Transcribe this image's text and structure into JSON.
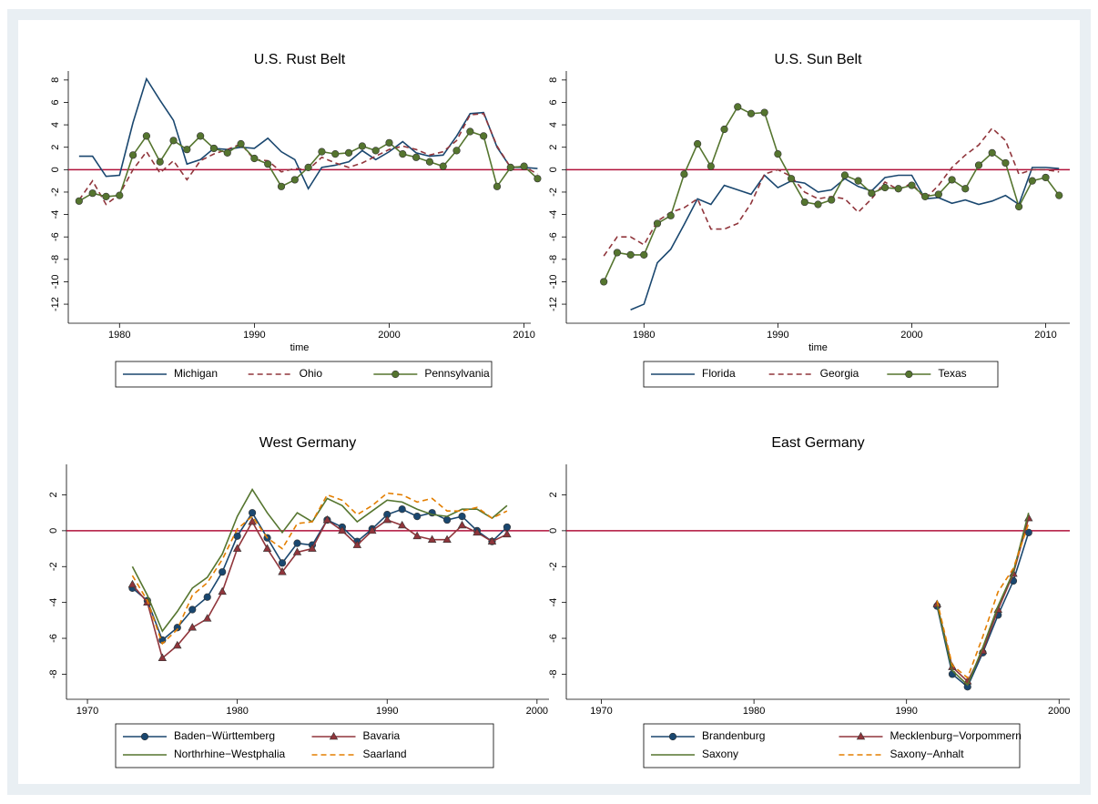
{
  "chart_data": [
    {
      "type": "line",
      "title": "U.S. Rust Belt",
      "x_label": "time",
      "x": [
        1977,
        1978,
        1979,
        1980,
        1981,
        1982,
        1983,
        1984,
        1985,
        1986,
        1987,
        1988,
        1989,
        1990,
        1991,
        1992,
        1993,
        1994,
        1995,
        1996,
        1997,
        1998,
        1999,
        2000,
        2001,
        2002,
        2003,
        2004,
        2005,
        2006,
        2007,
        2008,
        2009,
        2010,
        2011
      ],
      "series": [
        {
          "name": "Michigan",
          "color": "#1a476f",
          "values": [
            1.2,
            1.2,
            -0.6,
            -0.5,
            4.2,
            8.1,
            6.2,
            4.4,
            0.5,
            0.9,
            1.9,
            1.8,
            2.0,
            1.9,
            2.8,
            1.6,
            0.9,
            -1.7,
            0.2,
            0.4,
            0.7,
            1.7,
            0.9,
            1.6,
            2.5,
            1.5,
            1.2,
            1.3,
            3.0,
            5.0,
            5.1,
            2.0,
            0.2,
            0.2,
            0.1
          ]
        },
        {
          "name": "Ohio",
          "color": "#90353b",
          "dash": true,
          "values": [
            -2.7,
            -1.0,
            -3.1,
            -2.2,
            0.0,
            1.6,
            -0.3,
            0.8,
            -0.9,
            0.8,
            1.4,
            1.8,
            2.3,
            0.9,
            0.8,
            -0.2,
            0.1,
            0.0,
            1.1,
            0.6,
            0.2,
            0.6,
            1.2,
            1.8,
            2.1,
            1.8,
            1.3,
            1.6,
            2.6,
            4.9,
            5.0,
            2.1,
            0.2,
            0.3,
            -0.4
          ]
        },
        {
          "name": "Pennsylvania",
          "color": "#55752f",
          "marker": "circle",
          "values": [
            -2.8,
            -2.1,
            -2.4,
            -2.3,
            1.3,
            3.0,
            0.7,
            2.6,
            1.8,
            3.0,
            1.9,
            1.5,
            2.3,
            1.0,
            0.5,
            -1.5,
            -0.9,
            0.2,
            1.6,
            1.4,
            1.5,
            2.1,
            1.7,
            2.4,
            1.4,
            1.1,
            0.7,
            0.3,
            1.7,
            3.4,
            3.0,
            -1.5,
            0.2,
            0.3,
            -0.8
          ]
        }
      ],
      "xlim": [
        1976.2,
        2010.5
      ],
      "ylim": [
        -13.7,
        8.8
      ],
      "xticks": [
        1980,
        1990,
        2000,
        2010
      ],
      "yticks": [
        -12,
        -10,
        -8,
        -6,
        -4,
        -2,
        0,
        2,
        4,
        6,
        8
      ],
      "reference_line": 0,
      "legend_columns": 3
    },
    {
      "type": "line",
      "title": "U.S. Sun Belt",
      "x_label": "time",
      "x": [
        1977,
        1978,
        1979,
        1980,
        1981,
        1982,
        1983,
        1984,
        1985,
        1986,
        1987,
        1988,
        1989,
        1990,
        1991,
        1992,
        1993,
        1994,
        1995,
        1996,
        1997,
        1998,
        1999,
        2000,
        2001,
        2002,
        2003,
        2004,
        2005,
        2006,
        2007,
        2008,
        2009,
        2010,
        2011
      ],
      "series": [
        {
          "name": "Florida",
          "color": "#1a476f",
          "values": [
            null,
            null,
            -12.5,
            -12.0,
            -8.3,
            -7.1,
            -4.9,
            -2.6,
            -3.1,
            -1.4,
            -1.8,
            -2.2,
            -0.5,
            -1.6,
            -1.0,
            -1.2,
            -2.0,
            -1.8,
            -0.8,
            -1.5,
            -1.9,
            -0.7,
            -0.5,
            -0.5,
            -2.6,
            -2.5,
            -3.0,
            -2.7,
            -3.1,
            -2.8,
            -2.3,
            -3.1,
            0.2,
            0.2,
            0.1
          ]
        },
        {
          "name": "Georgia",
          "color": "#90353b",
          "dash": true,
          "values": [
            -7.7,
            -6.0,
            -6.0,
            -6.7,
            -4.6,
            -3.8,
            -3.4,
            -2.6,
            -5.3,
            -5.3,
            -4.8,
            -3.0,
            -0.4,
            0.0,
            -0.6,
            -2.0,
            -2.6,
            -2.4,
            -2.6,
            -3.8,
            -2.6,
            -1.1,
            -1.8,
            -1.2,
            -2.6,
            -1.4,
            0.2,
            1.3,
            2.2,
            3.7,
            2.6,
            -0.4,
            0.0,
            0.0,
            -0.2
          ]
        },
        {
          "name": "Texas",
          "color": "#55752f",
          "marker": "circle",
          "values": [
            -10.0,
            -7.4,
            -7.6,
            -7.6,
            -4.8,
            -4.1,
            -0.4,
            2.3,
            0.3,
            3.6,
            5.6,
            5.0,
            5.1,
            1.4,
            -0.8,
            -2.9,
            -3.1,
            -2.7,
            -0.5,
            -1.0,
            -2.1,
            -1.6,
            -1.7,
            -1.4,
            -2.4,
            -2.2,
            -0.9,
            -1.7,
            0.4,
            1.5,
            0.6,
            -3.3,
            -1.0,
            -0.7,
            -2.3
          ]
        }
      ],
      "xlim": [
        1974.2,
        2011.8
      ],
      "ylim": [
        -13.7,
        8.8
      ],
      "xticks": [
        1980,
        1990,
        2000,
        2010
      ],
      "yticks": [
        -12,
        -10,
        -8,
        -6,
        -4,
        -2,
        0,
        2,
        4,
        6,
        8
      ],
      "reference_line": 0,
      "legend_columns": 3
    },
    {
      "type": "line",
      "title": "West Germany",
      "x": [
        1973,
        1974,
        1975,
        1976,
        1977,
        1978,
        1979,
        1980,
        1981,
        1982,
        1983,
        1984,
        1985,
        1986,
        1987,
        1988,
        1989,
        1990,
        1991,
        1992,
        1993,
        1994,
        1995,
        1996,
        1997,
        1998
      ],
      "series": [
        {
          "name": "Baden−Württemberg",
          "color": "#1a476f",
          "marker": "circle",
          "values": [
            -3.2,
            -3.9,
            -6.1,
            -5.4,
            -4.4,
            -3.7,
            -2.3,
            -0.3,
            1.0,
            -0.4,
            -1.8,
            -0.7,
            -0.8,
            0.6,
            0.2,
            -0.6,
            0.1,
            0.9,
            1.2,
            0.8,
            1.0,
            0.6,
            0.8,
            0.0,
            -0.6,
            0.2
          ]
        },
        {
          "name": "Bavaria",
          "color": "#90353b",
          "marker": "triangle",
          "values": [
            -3.0,
            -4.0,
            -7.1,
            -6.4,
            -5.4,
            -4.9,
            -3.4,
            -1.0,
            0.5,
            -1.0,
            -2.3,
            -1.2,
            -1.0,
            0.6,
            0.0,
            -0.8,
            0.0,
            0.6,
            0.3,
            -0.3,
            -0.5,
            -0.5,
            0.3,
            -0.1,
            -0.6,
            -0.2
          ]
        },
        {
          "name": "Northrhine−Westphalia",
          "color": "#55752f",
          "values": [
            -2.0,
            -3.6,
            -5.6,
            -4.5,
            -3.2,
            -2.6,
            -1.3,
            0.8,
            2.3,
            1.0,
            -0.1,
            1.0,
            0.5,
            1.8,
            1.4,
            0.5,
            1.1,
            1.7,
            1.6,
            1.2,
            0.9,
            0.8,
            1.2,
            1.2,
            0.7,
            1.4
          ]
        },
        {
          "name": "Saarland",
          "color": "#e37e00",
          "dash": true,
          "values": [
            -2.5,
            -3.9,
            -6.3,
            -5.5,
            -3.6,
            -2.9,
            -1.6,
            0.1,
            0.8,
            -0.4,
            -1.0,
            0.4,
            0.5,
            2.0,
            1.7,
            0.9,
            1.4,
            2.1,
            2.0,
            1.6,
            1.8,
            1.1,
            1.1,
            1.3,
            0.7,
            1.1
          ]
        }
      ],
      "xlim": [
        1968.6,
        2000.8
      ],
      "ylim": [
        -9.4,
        3.7
      ],
      "xticks": [
        1970,
        1980,
        1990,
        2000
      ],
      "yticks": [
        -8,
        -6,
        -4,
        -2,
        0,
        2
      ],
      "reference_line": 0,
      "legend_columns": 2
    },
    {
      "type": "line",
      "title": "East Germany",
      "x": [
        1992,
        1993,
        1994,
        1995,
        1996,
        1997,
        1998
      ],
      "series": [
        {
          "name": "Brandenburg",
          "color": "#1a476f",
          "marker": "circle",
          "values": [
            -4.2,
            -8.0,
            -8.7,
            -6.8,
            -4.7,
            -2.8,
            -0.1
          ]
        },
        {
          "name": "Mecklenburg−Vorpommern",
          "color": "#90353b",
          "marker": "triangle",
          "values": [
            -4.1,
            -7.6,
            -8.4,
            -6.7,
            -4.4,
            -2.4,
            0.7
          ]
        },
        {
          "name": "Saxony",
          "color": "#55752f",
          "values": [
            -4.1,
            -7.8,
            -8.6,
            -6.5,
            -4.2,
            -2.3,
            1.0
          ]
        },
        {
          "name": "Saxony−Anhalt",
          "color": "#e37e00",
          "dash": true,
          "values": [
            -3.9,
            -7.5,
            -8.2,
            -5.9,
            -3.4,
            -2.1,
            0.4
          ]
        }
      ],
      "xlim": [
        1967.7,
        2000.7
      ],
      "ylim": [
        -9.4,
        3.7
      ],
      "xticks": [
        1970,
        1980,
        1990,
        2000
      ],
      "yticks": [
        -8,
        -6,
        -4,
        -2,
        0,
        2
      ],
      "reference_line": 0,
      "legend_columns": 2
    }
  ]
}
